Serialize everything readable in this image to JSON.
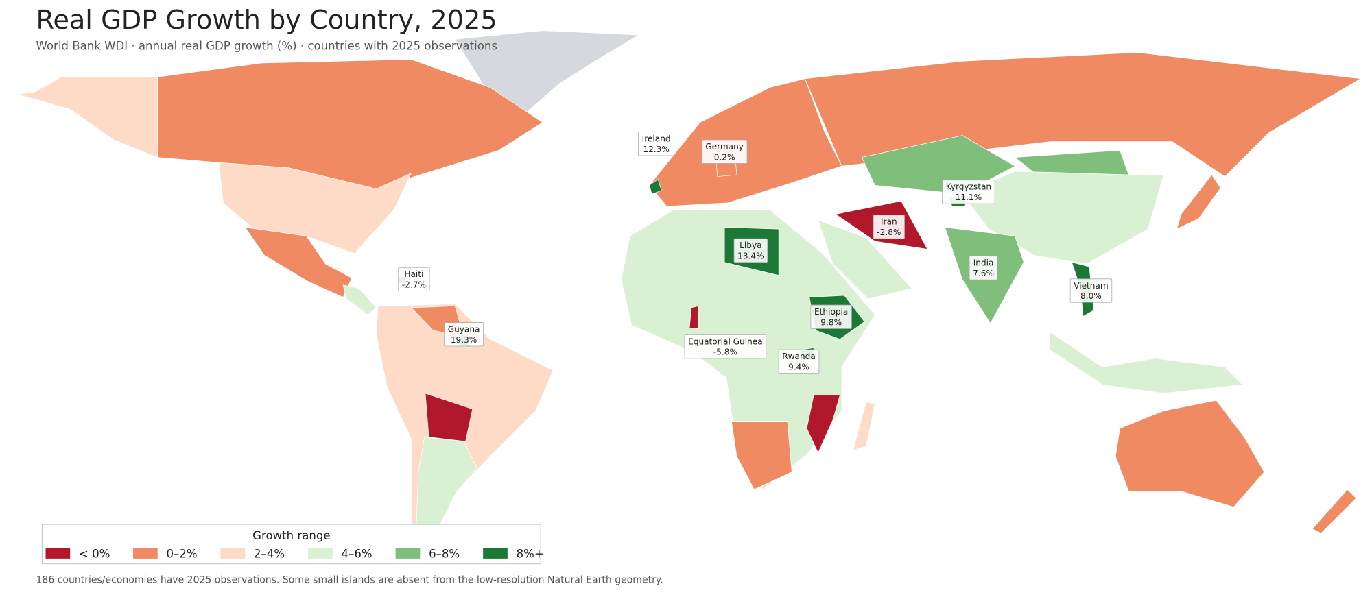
{
  "title": "Real GDP Growth by Country, 2025",
  "subtitle": "World Bank WDI · annual real GDP growth (%) · countries with 2025 observations",
  "annotations": [
    {
      "name": "Ireland",
      "value": 12.3,
      "value_label": "12.3%"
    },
    {
      "name": "Germany",
      "value": 0.2,
      "value_label": "0.2%"
    },
    {
      "name": "Kyrgyzstan",
      "value": 11.1,
      "value_label": "11.1%"
    },
    {
      "name": "Iran",
      "value": -2.8,
      "value_label": "-2.8%"
    },
    {
      "name": "Libya",
      "value": 13.4,
      "value_label": "13.4%"
    },
    {
      "name": "Haiti",
      "value": -2.7,
      "value_label": "-2.7%"
    },
    {
      "name": "India",
      "value": 7.6,
      "value_label": "7.6%"
    },
    {
      "name": "Vietnam",
      "value": 8,
      "value_label": "8.0%"
    },
    {
      "name": "Ethiopia",
      "value": 9.8,
      "value_label": "9.8%"
    },
    {
      "name": "Guyana",
      "value": 19.3,
      "value_label": "19.3%"
    },
    {
      "name": "Equatorial Guinea",
      "value": -5.8,
      "value_label": "-5.8%"
    },
    {
      "name": "Rwanda",
      "value": 9.4,
      "value_label": "9.4%"
    }
  ],
  "legend": {
    "title": "Growth range",
    "items": [
      {
        "label": "< 0%",
        "max": 0,
        "color": "#b2182b"
      },
      {
        "label": "0–2%",
        "min": 0,
        "max": 2,
        "color": "#ef8a62"
      },
      {
        "label": "2–4%",
        "min": 2,
        "max": 4,
        "color": "#fddbc7"
      },
      {
        "label": "4–6%",
        "min": 4,
        "max": 6,
        "color": "#d9f0d3"
      },
      {
        "label": "6–8%",
        "min": 6,
        "max": 8,
        "color": "#7fbf7b"
      },
      {
        "label": "8%+",
        "min": 8,
        "color": "#1b7837"
      }
    ]
  },
  "footnote": "186 countries/economies have 2025 observations. Some small islands are absent from the low-resolution Natural Earth geometry."
}
